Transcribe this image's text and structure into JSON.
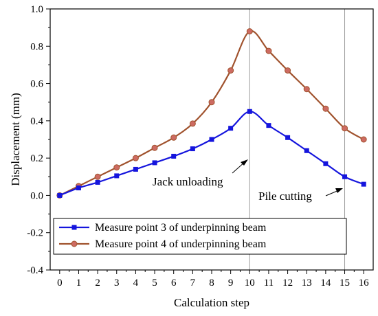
{
  "chart_data": {
    "type": "line",
    "xlabel": "Calculation step",
    "ylabel": "Displacement (mm)",
    "xlim": [
      -0.5,
      16.5
    ],
    "ylim": [
      -0.4,
      1.0
    ],
    "x_ticks": [
      0,
      1,
      2,
      3,
      4,
      5,
      6,
      7,
      8,
      9,
      10,
      11,
      12,
      13,
      14,
      15,
      16
    ],
    "y_ticks": [
      -0.4,
      -0.2,
      0.0,
      0.2,
      0.4,
      0.6,
      0.8,
      1.0
    ],
    "y_tick_labels": [
      "-0.4",
      "-0.2",
      "0.0",
      "0.2",
      "0.4",
      "0.6",
      "0.8",
      "1.0"
    ],
    "grid": false,
    "legend_position": "bottom-left",
    "x": [
      0,
      1,
      2,
      3,
      4,
      5,
      6,
      7,
      8,
      9,
      10,
      11,
      12,
      13,
      14,
      15,
      16
    ],
    "series": [
      {
        "name": "Measure point 3 of underpinning beam",
        "color": "#1515dd",
        "marker": "square",
        "values": [
          0.0,
          0.04,
          0.07,
          0.105,
          0.14,
          0.175,
          0.21,
          0.25,
          0.3,
          0.36,
          0.45,
          0.375,
          0.31,
          0.24,
          0.17,
          0.1,
          0.06
        ]
      },
      {
        "name": "Measure point 4 of underpinning beam",
        "color": "#a0522d",
        "marker_fill": "#cd6b62",
        "marker": "circle",
        "values": [
          0.0,
          0.05,
          0.1,
          0.15,
          0.2,
          0.255,
          0.31,
          0.385,
          0.5,
          0.67,
          0.88,
          0.775,
          0.67,
          0.57,
          0.465,
          0.36,
          0.3
        ]
      }
    ],
    "vlines": [
      10,
      15
    ],
    "annotations": [
      {
        "text": "Jack unloading",
        "x": 10,
        "y": 0.19
      },
      {
        "text": "Pile cutting",
        "x": 15,
        "y": 0.04
      }
    ]
  }
}
